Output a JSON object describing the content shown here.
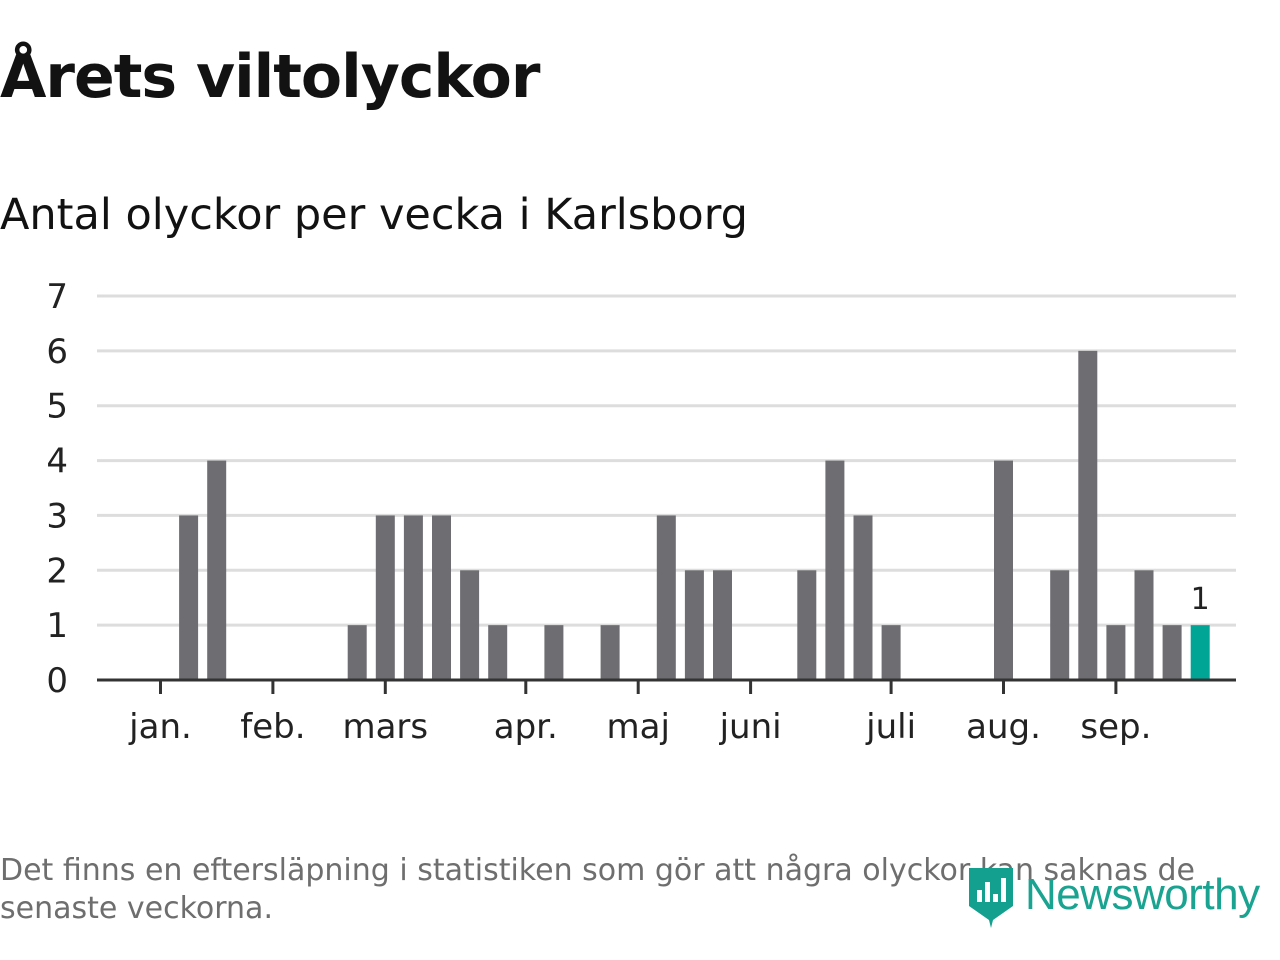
{
  "header": {
    "title": "Årets viltolyckor",
    "subtitle": "Antal olyckor per vecka i Karlsborg"
  },
  "chart_data": {
    "type": "bar",
    "ylim": [
      0,
      7
    ],
    "yticks": [
      "0",
      "1",
      "2",
      "3",
      "4",
      "5",
      "6",
      "7"
    ],
    "grid": true,
    "months": [
      {
        "label": "jan.",
        "week": 1
      },
      {
        "label": "feb.",
        "week": 5
      },
      {
        "label": "mars",
        "week": 9
      },
      {
        "label": "apr.",
        "week": 14
      },
      {
        "label": "maj",
        "week": 18
      },
      {
        "label": "juni",
        "week": 22
      },
      {
        "label": "juli",
        "week": 27
      },
      {
        "label": "aug.",
        "week": 31
      },
      {
        "label": "sep.",
        "week": 35
      }
    ],
    "values": [
      0,
      3,
      4,
      0,
      0,
      0,
      0,
      1,
      3,
      3,
      3,
      2,
      1,
      0,
      1,
      0,
      1,
      0,
      3,
      2,
      2,
      0,
      0,
      2,
      4,
      3,
      1,
      0,
      0,
      0,
      4,
      0,
      2,
      6,
      1,
      2,
      1,
      1
    ],
    "highlight_last": true,
    "data_labels": [
      {
        "index": 37,
        "text": "1"
      }
    ],
    "colors": {
      "bar": "#6e6d72",
      "highlight": "#00a596",
      "grid": "#dddddd",
      "axis": "#333333"
    }
  },
  "footnote": "Det finns en eftersläpning i statistiken som gör att några olyckor kan saknas de senaste veckorna.",
  "brand": {
    "name": "Newsworthy",
    "icon": "newsworthy-logo-icon",
    "color": "#14a08e"
  }
}
